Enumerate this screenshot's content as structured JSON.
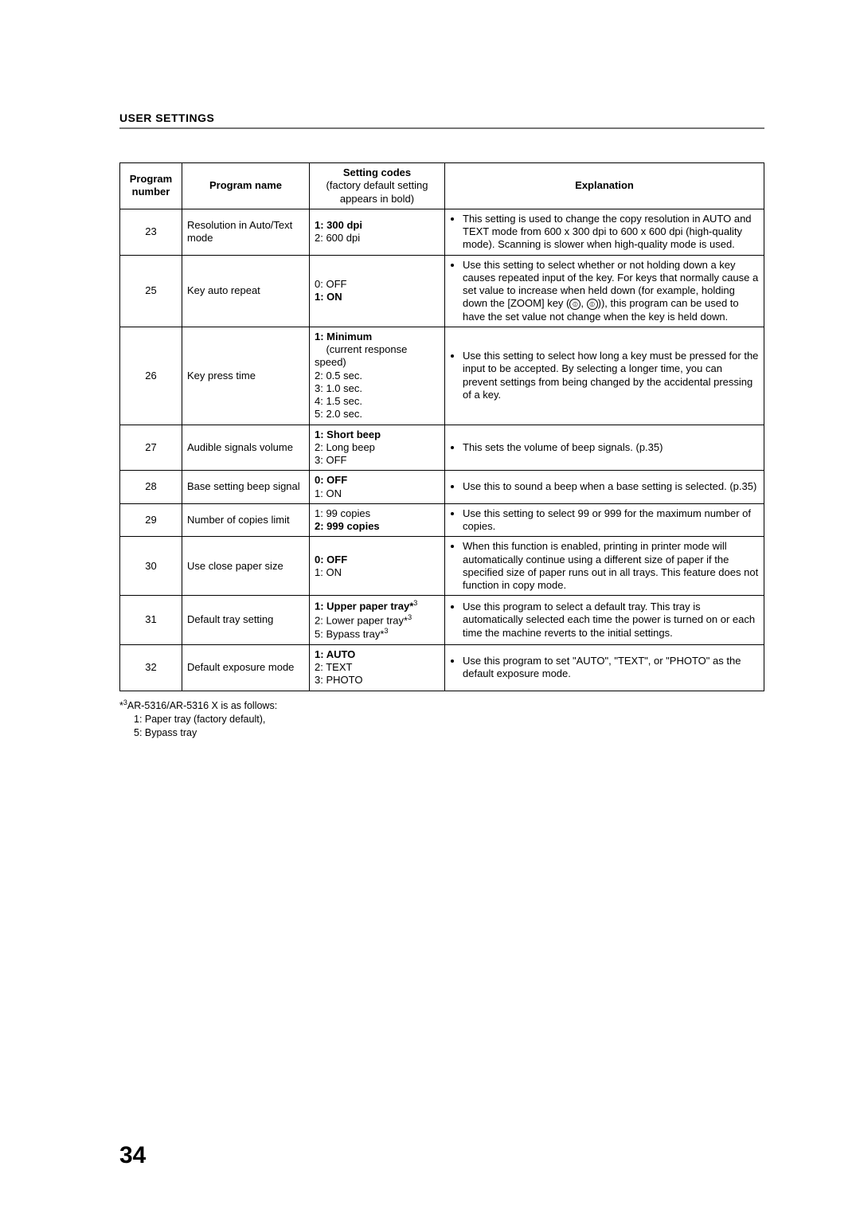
{
  "section_title": "USER SETTINGS",
  "page_number": "34",
  "table": {
    "headers": {
      "program_number": "Program number",
      "program_name": "Program name",
      "setting_codes_title": "Setting codes",
      "setting_codes_sub": "(factory default setting appears in bold)",
      "explanation": "Explanation"
    },
    "rows": [
      {
        "num": "23",
        "name": "Resolution in Auto/Text mode",
        "codes": [
          {
            "text": "1: 300 dpi",
            "bold": true
          },
          {
            "text": "2: 600 dpi",
            "bold": false
          }
        ],
        "explanation": "This setting is used to change the copy resolution in AUTO and TEXT mode from 600 x 300 dpi to 600 x 600 dpi (high-quality mode). Scanning is slower when high-quality mode is used."
      },
      {
        "num": "25",
        "name": "Key auto repeat",
        "codes": [
          {
            "text": "0: OFF",
            "bold": false
          },
          {
            "text": "1: ON",
            "bold": true
          }
        ],
        "explanation_html": "Use this setting to select whether or not holding down a key causes repeated input of the key. For keys that normally cause a set value to increase when held down (for example, holding down the [ZOOM] key (<span class='zoom-icon'>⦶</span>, <span class='zoom-icon'>⦶</span>)), this program can be used to have the set value not change when the key is held down."
      },
      {
        "num": "26",
        "name": "Key press time",
        "codes": [
          {
            "text": "1: Minimum",
            "bold": true
          },
          {
            "text": "    (current response speed)",
            "bold": false
          },
          {
            "text": "2: 0.5 sec.",
            "bold": false
          },
          {
            "text": "3: 1.0 sec.",
            "bold": false
          },
          {
            "text": "4: 1.5 sec.",
            "bold": false
          },
          {
            "text": "5: 2.0 sec.",
            "bold": false
          }
        ],
        "explanation": "Use this setting to select how long a key must be pressed for the input to be accepted. By selecting a longer time, you can prevent settings from being changed by the accidental pressing of a key."
      },
      {
        "num": "27",
        "name": "Audible signals volume",
        "codes": [
          {
            "text": "1: Short beep",
            "bold": true
          },
          {
            "text": "2: Long beep",
            "bold": false
          },
          {
            "text": "3: OFF",
            "bold": false
          }
        ],
        "explanation": "This sets the volume of beep signals. (p.35)"
      },
      {
        "num": "28",
        "name": "Base setting beep signal",
        "codes": [
          {
            "text": "0: OFF",
            "bold": true
          },
          {
            "text": "1: ON",
            "bold": false
          }
        ],
        "explanation": "Use this to sound a beep when a base setting is selected. (p.35)"
      },
      {
        "num": "29",
        "name": "Number of copies limit",
        "codes": [
          {
            "text": "1: 99 copies",
            "bold": false
          },
          {
            "text": "2: 999 copies",
            "bold": true
          }
        ],
        "explanation": "Use this setting to select 99 or 999 for the maximum number of copies."
      },
      {
        "num": "30",
        "name": "Use close paper size",
        "codes": [
          {
            "text": "0: OFF",
            "bold": true
          },
          {
            "text": "1: ON",
            "bold": false
          }
        ],
        "explanation": "When this function is enabled, printing in printer mode will automatically continue using a different size of paper if the specified size of paper runs out in all trays. This feature does not function in copy mode."
      },
      {
        "num": "31",
        "name": "Default tray setting",
        "codes": [
          {
            "text": "1: Upper paper tray*",
            "bold": true,
            "sup": "3"
          },
          {
            "text": "2: Lower paper tray*",
            "bold": false,
            "sup": "3"
          },
          {
            "text": "5: Bypass tray*",
            "bold": false,
            "sup": "3"
          }
        ],
        "explanation": "Use this program to select a default tray. This tray is automatically selected each time the power is turned on or each time the machine reverts to the initial settings."
      },
      {
        "num": "32",
        "name": "Default exposure mode",
        "codes": [
          {
            "text": "1: AUTO",
            "bold": true
          },
          {
            "text": "2: TEXT",
            "bold": false
          },
          {
            "text": "3: PHOTO",
            "bold": false
          }
        ],
        "explanation": "Use this program to set \"AUTO\", \"TEXT\", or \"PHOTO\" as the default exposure mode."
      }
    ]
  },
  "footnote": {
    "marker_sup": "3",
    "line1": "AR-5316/AR-5316 X  is as follows:",
    "line2": "1: Paper tray (factory default),",
    "line3": "5: Bypass tray"
  }
}
